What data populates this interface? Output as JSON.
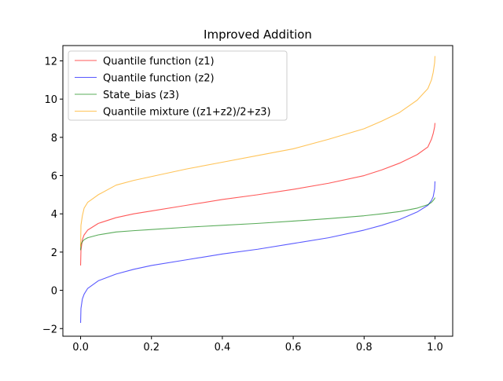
{
  "chart_data": {
    "type": "line",
    "title": "Improved Addition",
    "xlabel": "",
    "ylabel": "",
    "xlim": [
      -0.05,
      1.05
    ],
    "ylim": [
      -2.4,
      12.8
    ],
    "xticks": [
      0.0,
      0.2,
      0.4,
      0.6,
      0.8,
      1.0
    ],
    "xtick_labels": [
      "0.0",
      "0.2",
      "0.4",
      "0.6",
      "0.8",
      "1.0"
    ],
    "yticks": [
      -2,
      0,
      2,
      4,
      6,
      8,
      10,
      12
    ],
    "ytick_labels": [
      "−2",
      "0",
      "2",
      "4",
      "6",
      "8",
      "10",
      "12"
    ],
    "grid": false,
    "legend_position": "upper-left",
    "x": [
      0.0,
      0.001,
      0.005,
      0.01,
      0.02,
      0.05,
      0.1,
      0.15,
      0.2,
      0.3,
      0.4,
      0.5,
      0.6,
      0.7,
      0.8,
      0.85,
      0.9,
      0.95,
      0.98,
      0.99,
      0.995,
      0.999,
      1.0
    ],
    "series": [
      {
        "name": "Quantile function (z1)",
        "color": "#ff0000",
        "values": [
          1.3,
          2.1,
          2.65,
          2.9,
          3.15,
          3.5,
          3.8,
          4.0,
          4.15,
          4.45,
          4.75,
          5.0,
          5.28,
          5.6,
          6.0,
          6.3,
          6.65,
          7.1,
          7.5,
          7.9,
          8.2,
          8.55,
          8.75
        ]
      },
      {
        "name": "Quantile function (z2)",
        "color": "#0000ff",
        "values": [
          -1.7,
          -0.95,
          -0.45,
          -0.2,
          0.1,
          0.5,
          0.85,
          1.1,
          1.3,
          1.6,
          1.9,
          2.15,
          2.45,
          2.75,
          3.15,
          3.4,
          3.7,
          4.1,
          4.45,
          4.7,
          4.9,
          5.3,
          5.7
        ]
      },
      {
        "name": "State_bias (z3)",
        "color": "#008000",
        "values": [
          2.1,
          2.4,
          2.55,
          2.65,
          2.75,
          2.9,
          3.05,
          3.12,
          3.18,
          3.3,
          3.4,
          3.5,
          3.62,
          3.75,
          3.9,
          4.0,
          4.12,
          4.3,
          4.48,
          4.6,
          4.7,
          4.8,
          4.85
        ]
      },
      {
        "name": "Quantile mixture ((z1+z2)/2+z3)",
        "color": "#ffa500",
        "values": [
          2.3,
          3.4,
          3.9,
          4.3,
          4.6,
          5.0,
          5.5,
          5.75,
          5.95,
          6.35,
          6.7,
          7.05,
          7.4,
          7.9,
          8.45,
          8.85,
          9.3,
          9.95,
          10.55,
          11.0,
          11.4,
          11.9,
          12.25
        ]
      }
    ]
  }
}
